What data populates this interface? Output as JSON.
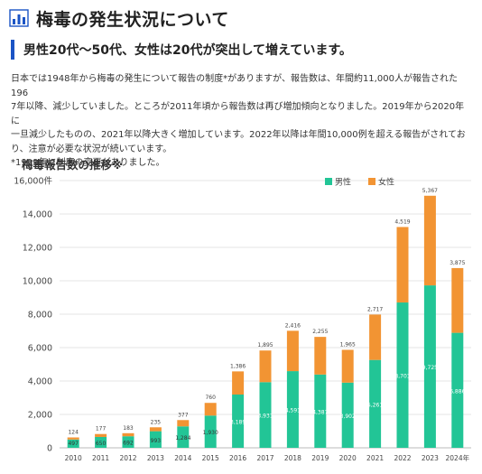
{
  "header": {
    "title": "梅毒の発生状況について"
  },
  "subheading": "男性20代～50代、女性は20代が突出して増えています。",
  "body": {
    "lines": [
      "日本では1948年から梅毒の発生について報告の制度*がありますが、報告数は、年間約11,000人が報告された196",
      "7年以降、減少していました。ところが2011年頃から報告数は再び増加傾向となりました。2019年から2020年に",
      "一旦減少したものの、2021年以降大きく増加しています。2022年以降は年間10,000例を超える報告がされてお",
      "り、注意が必要な状況が続いています。",
      "*1999年に制度の変更がありました。"
    ]
  },
  "chart_title": "梅毒報告数の推移※",
  "chart_data": {
    "type": "bar",
    "stacked": true,
    "categories": [
      "2010",
      "2011",
      "2012",
      "2013",
      "2014",
      "2015",
      "2016",
      "2017",
      "2018",
      "2019",
      "2020",
      "2021",
      "2022",
      "2023",
      "2024年"
    ],
    "series": [
      {
        "name": "男性",
        "color": "#22c596",
        "values": [
          497,
          650,
          692,
          993,
          1284,
          1930,
          3189,
          3931,
          4591,
          4387,
          3902,
          5261,
          8701,
          9725,
          6886
        ]
      },
      {
        "name": "女性",
        "color": "#f29433",
        "values": [
          124,
          177,
          183,
          235,
          377,
          760,
          1386,
          1895,
          2416,
          2255,
          1965,
          2717,
          4519,
          5367,
          3875
        ]
      }
    ],
    "ylim": [
      0,
      16000
    ],
    "yticks": [
      0,
      2000,
      4000,
      6000,
      8000,
      10000,
      12000,
      14000,
      16000
    ],
    "ytick_labels": [
      "0",
      "2,000",
      "4,000",
      "6,000",
      "8,000",
      "10,000",
      "12,000",
      "14,000",
      "16,000件"
    ],
    "grid": true,
    "legend_position": "top-right"
  }
}
